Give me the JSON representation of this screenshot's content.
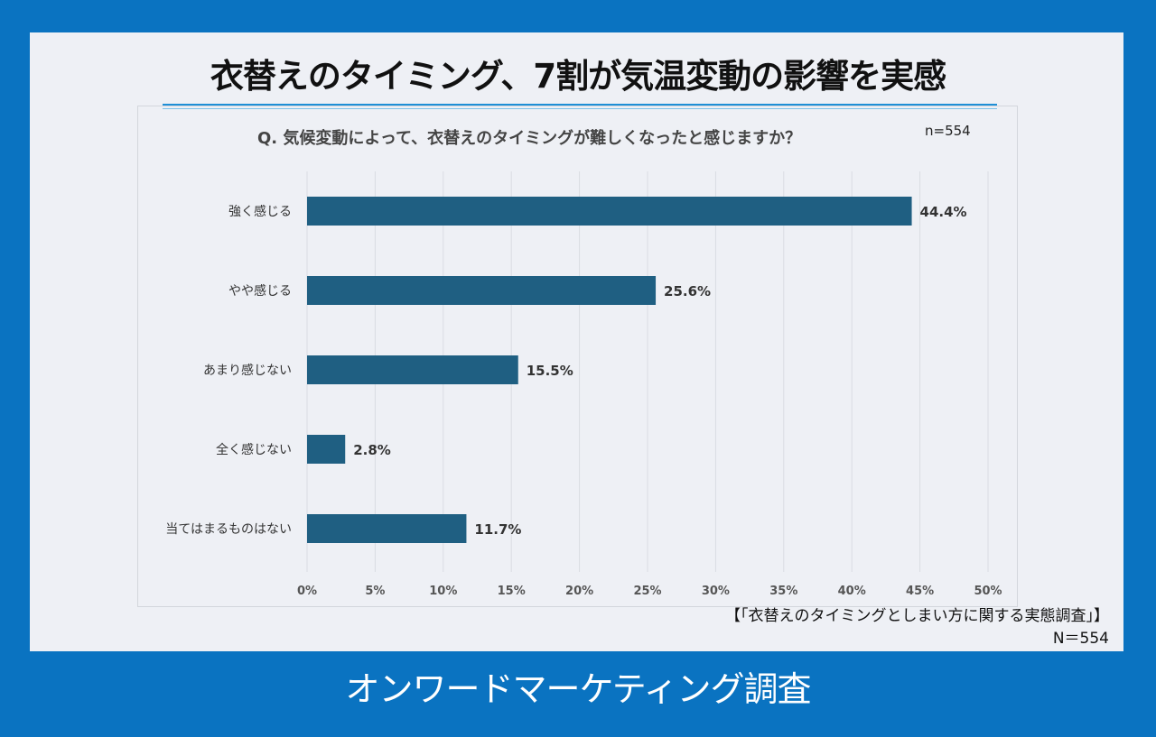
{
  "title": "衣替えのタイミング、7割が気温変動の影響を実感",
  "question": "Q. 気候変動によって、衣替えのタイミングが難しくなったと感じますか？",
  "n_label": "n=554",
  "source": "【「衣替えのタイミングとしまい方に関する実態調査」】",
  "source_n": "N＝554",
  "footer": "オンワードマーケティング調査",
  "colors": {
    "background": "#0a73c1",
    "panel": "#eef0f5",
    "bar": "#1f5f82",
    "accent": "#1f8fd6"
  },
  "chart_data": {
    "type": "bar",
    "orientation": "horizontal",
    "categories": [
      "強く感じる",
      "やや感じる",
      "あまり感じない",
      "全く感じない",
      "当てはまるものはない"
    ],
    "values": [
      44.4,
      25.6,
      15.5,
      2.8,
      11.7
    ],
    "value_labels": [
      "44.4%",
      "25.6%",
      "15.5%",
      "2.8%",
      "11.7%"
    ],
    "xlim": [
      0,
      50
    ],
    "xticks": [
      0,
      5,
      10,
      15,
      20,
      25,
      30,
      35,
      40,
      45,
      50
    ],
    "xtick_labels": [
      "0%",
      "5%",
      "10%",
      "15%",
      "20%",
      "25%",
      "30%",
      "35%",
      "40%",
      "45%",
      "50%"
    ],
    "grid": true
  }
}
